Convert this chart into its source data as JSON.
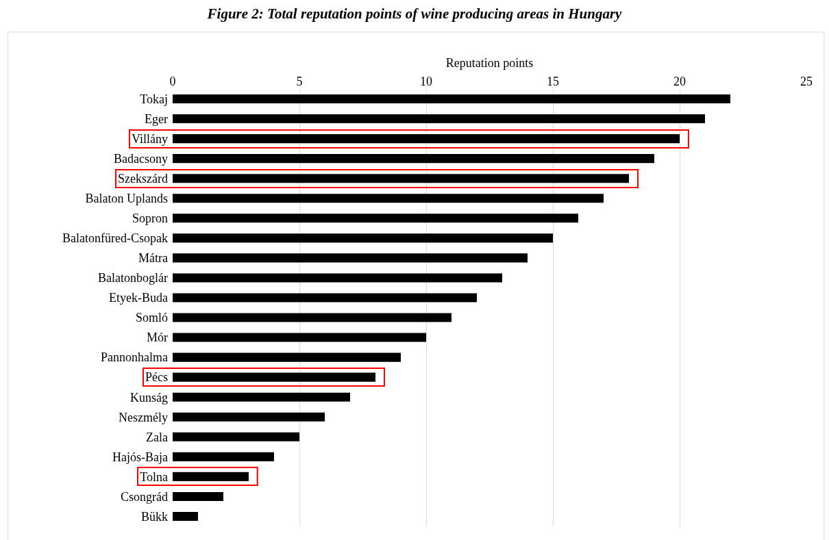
{
  "chart_data": {
    "type": "bar",
    "orientation": "horizontal",
    "title": "Figure 2: Total reputation points of wine producing areas in Hungary",
    "xlabel": "Reputation points",
    "categories": [
      "Tokaj",
      "Eger",
      "Villány",
      "Badacsony",
      "Szekszárd",
      "Balaton Uplands",
      "Sopron",
      "Balatonfüred-Csopak",
      "Mátra",
      "Balatonboglár",
      "Etyek-Buda",
      "Somló",
      "Mór",
      "Pannonhalma",
      "Pécs",
      "Kunság",
      "Neszmély",
      "Zala",
      "Hajós-Baja",
      "Tolna",
      "Csongrád",
      "Bükk"
    ],
    "values": [
      22,
      21,
      20,
      19,
      18,
      17,
      16,
      15,
      14,
      13,
      12,
      11,
      10,
      9,
      8,
      7,
      6,
      5,
      4,
      3,
      2,
      1
    ],
    "color": "#000000",
    "xlim": [
      0,
      25
    ],
    "xticks": [
      0,
      5,
      10,
      15,
      20,
      25
    ],
    "grid": "x"
  }
}
